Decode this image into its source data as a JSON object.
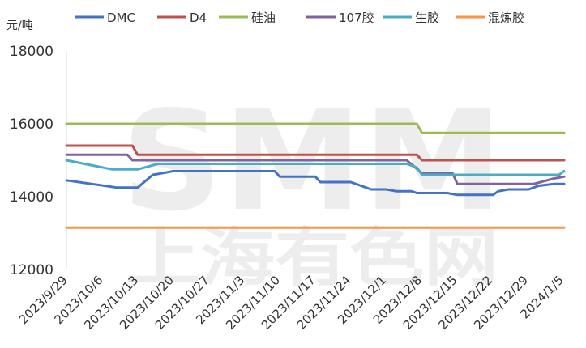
{
  "chart_data": {
    "type": "line",
    "unit_label": "元/吨",
    "watermark": {
      "logo": "SMM",
      "text": "上海有色网"
    },
    "ylim": [
      12000,
      18000
    ],
    "y_ticks": [
      12000,
      14000,
      16000,
      18000
    ],
    "y_tick_labels": [
      "12000",
      "14000",
      "16000",
      "18000"
    ],
    "x_tick_labels": [
      "2023/9/29",
      "2023/10/6",
      "2023/10/13",
      "2023/10/20",
      "2023/10/27",
      "2023/11/3",
      "2023/11/10",
      "2023/11/17",
      "2023/11/24",
      "2023/12/1",
      "2023/12/8",
      "2023/12/15",
      "2023/12/22",
      "2023/12/29",
      "2024/1/5"
    ],
    "x_range": [
      "2023-09-29",
      "2024-01-05"
    ],
    "legend_position": "top",
    "grid": false,
    "series": [
      {
        "name": "DMC",
        "color": "#4472C4",
        "points": [
          [
            "2023-09-29",
            14450
          ],
          [
            "2023-10-09",
            14250
          ],
          [
            "2023-10-12",
            14250
          ],
          [
            "2023-10-13",
            14250
          ],
          [
            "2023-10-16",
            14600
          ],
          [
            "2023-10-18",
            14650
          ],
          [
            "2023-10-20",
            14700
          ],
          [
            "2023-10-23",
            14700
          ],
          [
            "2023-11-09",
            14700
          ],
          [
            "2023-11-10",
            14550
          ],
          [
            "2023-11-13",
            14550
          ],
          [
            "2023-11-17",
            14550
          ],
          [
            "2023-11-18",
            14400
          ],
          [
            "2023-11-24",
            14400
          ],
          [
            "2023-11-26",
            14300
          ],
          [
            "2023-11-28",
            14200
          ],
          [
            "2023-12-01",
            14200
          ],
          [
            "2023-12-03",
            14150
          ],
          [
            "2023-12-06",
            14150
          ],
          [
            "2023-12-07",
            14100
          ],
          [
            "2023-12-13",
            14100
          ],
          [
            "2023-12-15",
            14050
          ],
          [
            "2023-12-20",
            14050
          ],
          [
            "2023-12-22",
            14050
          ],
          [
            "2023-12-23",
            14150
          ],
          [
            "2023-12-25",
            14200
          ],
          [
            "2023-12-29",
            14200
          ],
          [
            "2023-12-31",
            14300
          ],
          [
            "2024-01-03",
            14350
          ],
          [
            "2024-01-05",
            14350
          ]
        ]
      },
      {
        "name": "D4",
        "color": "#C0504D",
        "points": [
          [
            "2023-09-29",
            15400
          ],
          [
            "2023-10-12",
            15400
          ],
          [
            "2023-10-13",
            15150
          ],
          [
            "2023-12-06",
            15150
          ],
          [
            "2023-12-07",
            15150
          ],
          [
            "2023-12-08",
            15000
          ],
          [
            "2024-01-05",
            15000
          ]
        ]
      },
      {
        "name": "硅油",
        "color": "#9BBB59",
        "points": [
          [
            "2023-09-29",
            16000
          ],
          [
            "2023-12-07",
            16000
          ],
          [
            "2023-12-08",
            15750
          ],
          [
            "2024-01-05",
            15750
          ]
        ]
      },
      {
        "name": "107胶",
        "color": "#8064A2",
        "points": [
          [
            "2023-09-29",
            15150
          ],
          [
            "2023-10-11",
            15150
          ],
          [
            "2023-10-12",
            15000
          ],
          [
            "2023-12-05",
            15000
          ],
          [
            "2023-12-08",
            14650
          ],
          [
            "2023-12-14",
            14650
          ],
          [
            "2023-12-15",
            14350
          ],
          [
            "2023-12-30",
            14350
          ],
          [
            "2024-01-03",
            14500
          ],
          [
            "2024-01-05",
            14550
          ]
        ]
      },
      {
        "name": "生胶",
        "color": "#4BACC6",
        "points": [
          [
            "2023-09-29",
            15000
          ],
          [
            "2023-10-08",
            14750
          ],
          [
            "2023-10-13",
            14750
          ],
          [
            "2023-10-17",
            14900
          ],
          [
            "2023-12-05",
            14900
          ],
          [
            "2023-12-07",
            14800
          ],
          [
            "2023-12-08",
            14600
          ],
          [
            "2024-01-04",
            14600
          ],
          [
            "2024-01-05",
            14700
          ]
        ]
      },
      {
        "name": "混炼胶",
        "color": "#F79646",
        "points": [
          [
            "2023-09-29",
            13150
          ],
          [
            "2024-01-05",
            13150
          ]
        ]
      }
    ]
  }
}
